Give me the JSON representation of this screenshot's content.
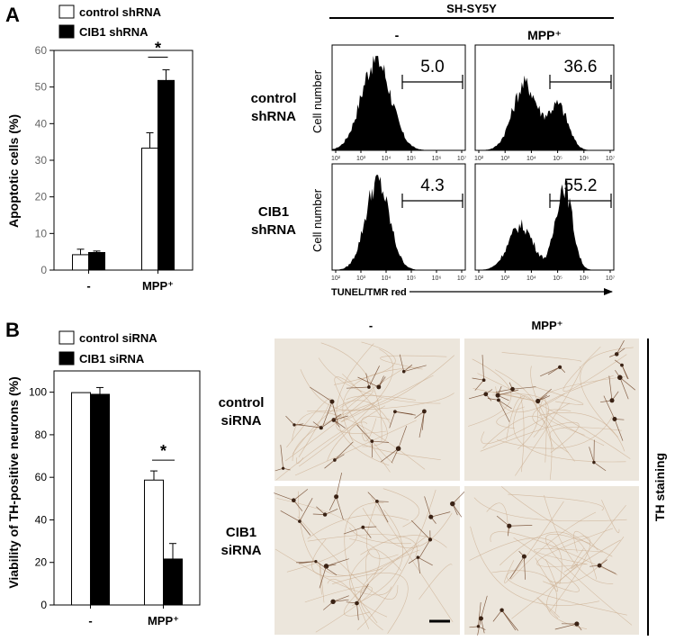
{
  "panel_a": {
    "letter": "A",
    "legend": [
      "control shRNA",
      "CIB1 shRNA"
    ],
    "header": "SH-SY5Y",
    "columns": [
      "-",
      "MPP⁺"
    ],
    "rows": [
      {
        "line1": "control",
        "line2": "shRNA"
      },
      {
        "line1": "CIB1",
        "line2": "shRNA"
      }
    ],
    "hist_ylabel": "Cell number",
    "hist_xlabel": "TUNEL/TMR red",
    "hist_ticks": [
      "10²",
      "10³",
      "10⁴",
      "10⁵",
      "10⁶",
      "10⁷"
    ],
    "hist_values": [
      "5.0",
      "36.6",
      "4.3",
      "55.2"
    ]
  },
  "panel_b": {
    "letter": "B",
    "legend": [
      "control siRNA",
      "CIB1 siRNA"
    ],
    "columns": [
      "-",
      "MPP⁺"
    ],
    "rows": [
      {
        "line1": "control",
        "line2": "siRNA"
      },
      {
        "line1": "CIB1",
        "line2": "siRNA"
      }
    ],
    "side_label": "TH staining"
  },
  "colors": {
    "filled": "#000000",
    "open": "#ffffff",
    "tissue": "#ece6dc",
    "stain": "#6b3f22"
  },
  "chart_data": [
    {
      "type": "bar",
      "ylabel": "Apoptotic cells (%)",
      "categories": [
        "-",
        "MPP⁺"
      ],
      "yticks": [
        "0",
        "10",
        "20",
        "30",
        "40",
        "50",
        "60"
      ],
      "ylim": [
        0,
        60
      ],
      "series": [
        {
          "name": "control shRNA",
          "values": [
            4.2,
            33.3
          ],
          "errors": [
            1.5,
            4.2
          ],
          "fill": "open"
        },
        {
          "name": "CIB1 shRNA",
          "values": [
            4.8,
            51.8
          ],
          "errors": [
            0.4,
            2.9
          ],
          "fill": "filled"
        }
      ],
      "annotation": "*"
    },
    {
      "type": "bar",
      "ylabel": "Viability of TH-positive neurons (%)",
      "categories": [
        "-",
        "MPP⁺"
      ],
      "yticks": [
        "0",
        "20",
        "40",
        "60",
        "80",
        "100"
      ],
      "ylim": [
        0,
        110
      ],
      "series": [
        {
          "name": "control siRNA",
          "values": [
            99.8,
            58.7
          ],
          "errors": [
            0,
            4.3
          ],
          "fill": "open"
        },
        {
          "name": "CIB1 siRNA",
          "values": [
            99.0,
            21.6
          ],
          "errors": [
            3.2,
            7.3
          ],
          "fill": "filled"
        }
      ],
      "annotation": "*"
    }
  ]
}
